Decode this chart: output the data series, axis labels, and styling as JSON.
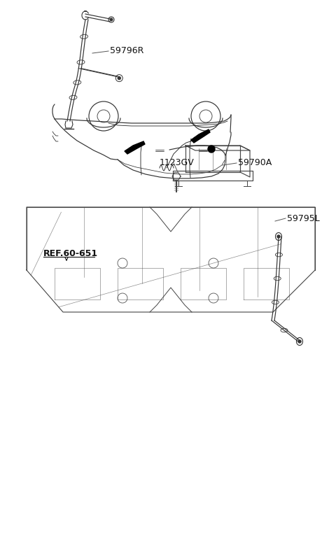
{
  "bg_color": "#ffffff",
  "line_color": "#444444",
  "dark_color": "#111111",
  "label_59796R": "59796R",
  "label_59795L": "59795L",
  "label_59790A": "59790A",
  "label_1123GV": "1123GV",
  "label_ref": "REF.60-651",
  "font_size_labels": 9,
  "figsize": [
    4.8,
    7.76
  ],
  "dpi": 100
}
